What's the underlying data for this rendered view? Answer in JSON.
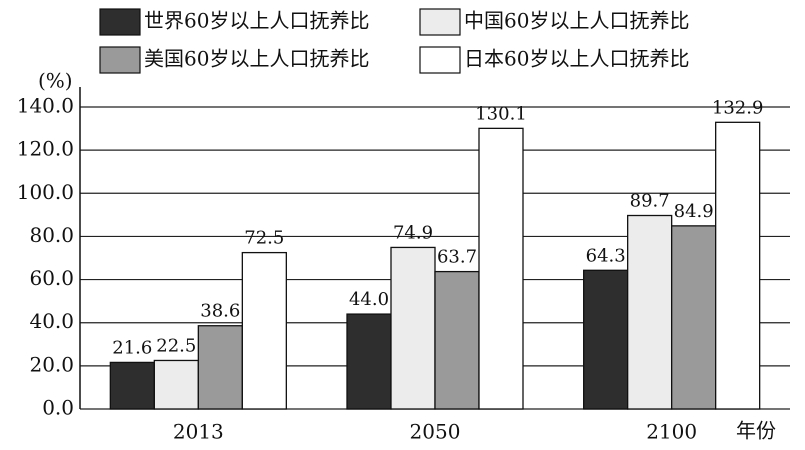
{
  "chart_data": {
    "type": "bar",
    "y_unit": "(%)",
    "x_label": "年份",
    "categories": [
      "2013",
      "2050",
      "2100"
    ],
    "series": [
      {
        "name": "世界60岁以上人口抚养比",
        "color": "#2e2e2e",
        "values": [
          21.6,
          44.0,
          64.3
        ],
        "value_labels": [
          "21.6",
          "44.0",
          "64.3"
        ]
      },
      {
        "name": "中国60岁以上人口抚养比",
        "color": "#ececec",
        "values": [
          22.5,
          74.9,
          89.7
        ],
        "value_labels": [
          "22.5",
          "74.9",
          "89.7"
        ]
      },
      {
        "name": "美国60岁以上人口抚养比",
        "color": "#9a9a9a",
        "values": [
          38.6,
          63.7,
          84.9
        ],
        "value_labels": [
          "38.6",
          "63.7",
          "84.9"
        ]
      },
      {
        "name": "日本60岁以上人口抚养比",
        "color": "#ffffff",
        "values": [
          72.5,
          130.1,
          132.9
        ],
        "value_labels": [
          "72.5",
          "130.1",
          "132.9"
        ]
      }
    ],
    "ylim": [
      0,
      140
    ],
    "yticks": [
      {
        "value": 0,
        "label": "0.0"
      },
      {
        "value": 20,
        "label": "20.0"
      },
      {
        "value": 40,
        "label": "40.0"
      },
      {
        "value": 60,
        "label": "60.0"
      },
      {
        "value": 80,
        "label": "80.0"
      },
      {
        "value": 100,
        "label": "100.0"
      },
      {
        "value": 120,
        "label": "120.0"
      },
      {
        "value": 140,
        "label": "140.0"
      }
    ],
    "grid": true,
    "legend": "top"
  }
}
